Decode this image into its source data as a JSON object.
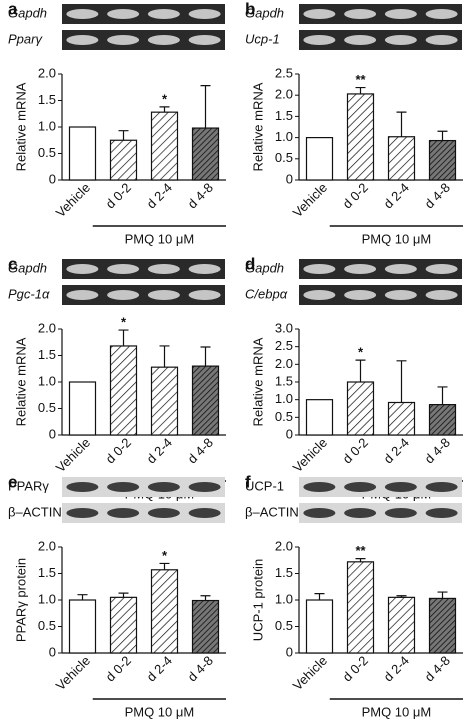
{
  "chart_data": [
    {
      "type": "bar",
      "panel": "a",
      "gel_labels": [
        "Gapdh",
        "Pparγ"
      ],
      "gel_label_italic": true,
      "gel_style": "dark",
      "ylabel": "Relative mRNA",
      "categories": [
        "Vehicle",
        "d 0-2",
        "d 2-4",
        "d 4-8"
      ],
      "values": [
        1.0,
        0.75,
        1.28,
        0.98
      ],
      "errors": [
        0,
        0.18,
        0.1,
        0.8
      ],
      "significance": [
        null,
        null,
        "*",
        null
      ],
      "bar_patterns": [
        "open",
        "hatch",
        "hatch",
        "dense"
      ],
      "group_label": "PMQ 10 μM",
      "ylim": [
        0,
        2.0
      ],
      "yticks": [
        0,
        0.5,
        {
          "value": 1,
          "label": "1.0"
        },
        1.5,
        {
          "value": 2,
          "label": "2.0"
        }
      ]
    },
    {
      "type": "bar",
      "panel": "b",
      "gel_labels": [
        "Gapdh",
        "Ucp-1"
      ],
      "gel_label_italic": true,
      "gel_style": "dark",
      "ylabel": "Relative mRNA",
      "categories": [
        "Vehicle",
        "d 0-2",
        "d 2-4",
        "d 4-8"
      ],
      "values": [
        1.0,
        2.03,
        1.02,
        0.93
      ],
      "errors": [
        0,
        0.15,
        0.58,
        0.22
      ],
      "significance": [
        null,
        "**",
        null,
        null
      ],
      "bar_patterns": [
        "open",
        "hatch",
        "hatch",
        "dense"
      ],
      "group_label": "PMQ 10 μM",
      "ylim": [
        0,
        2.5
      ],
      "yticks": [
        0,
        0.5,
        {
          "value": 1,
          "label": "1.0"
        },
        1.5,
        {
          "value": 2,
          "label": "2.0"
        },
        2.5
      ]
    },
    {
      "type": "bar",
      "panel": "c",
      "gel_labels": [
        "Gapdh",
        "Pgc-1α"
      ],
      "gel_label_italic": true,
      "gel_style": "dark",
      "ylabel": "Relative mRNA",
      "categories": [
        "Vehicle",
        "d 0-2",
        "d 2-4",
        "d 4-8"
      ],
      "values": [
        1.0,
        1.68,
        1.28,
        1.3
      ],
      "errors": [
        0,
        0.3,
        0.4,
        0.36
      ],
      "significance": [
        null,
        "*",
        null,
        null
      ],
      "bar_patterns": [
        "open",
        "hatch",
        "hatch",
        "dense"
      ],
      "group_label": "PMQ 10 μM",
      "ylim": [
        0,
        2.0
      ],
      "yticks": [
        0,
        0.5,
        {
          "value": 1,
          "label": "1.0"
        },
        1.5,
        {
          "value": 2,
          "label": "2.0"
        }
      ]
    },
    {
      "type": "bar",
      "panel": "d",
      "gel_labels": [
        "Gapdh",
        "C/ebpα"
      ],
      "gel_label_italic": true,
      "gel_style": "dark",
      "ylabel": "Relative mRNA",
      "categories": [
        "Vehicle",
        "d 0-2",
        "d 2-4",
        "d 4-8"
      ],
      "values": [
        1.0,
        1.5,
        0.92,
        0.86
      ],
      "errors": [
        0,
        0.62,
        1.18,
        0.5
      ],
      "significance": [
        null,
        "*",
        null,
        null
      ],
      "bar_patterns": [
        "open",
        "hatch",
        "hatch",
        "dense"
      ],
      "group_label": "PMQ 10 μM",
      "ylim": [
        0,
        3.0
      ],
      "yticks": [
        0,
        0.5,
        {
          "value": 1,
          "label": "1.0"
        },
        1.5,
        {
          "value": 2,
          "label": "2.0"
        },
        2.5,
        {
          "value": 3,
          "label": "3.0"
        }
      ]
    },
    {
      "type": "bar",
      "panel": "e",
      "gel_labels": [
        "PPARγ",
        "β–ACTIN"
      ],
      "gel_label_italic": false,
      "gel_style": "light",
      "ylabel": "PPARγ protein",
      "categories": [
        "Vehicle",
        "d 0-2",
        "d 2-4",
        "d 4-8"
      ],
      "values": [
        1.0,
        1.05,
        1.57,
        0.99
      ],
      "errors": [
        0.1,
        0.08,
        0.12,
        0.09
      ],
      "significance": [
        null,
        null,
        "*",
        null
      ],
      "bar_patterns": [
        "open",
        "hatch",
        "hatch",
        "dense"
      ],
      "group_label": "PMQ 10 μM",
      "ylim": [
        0,
        2.0
      ],
      "yticks": [
        0,
        0.5,
        {
          "value": 1,
          "label": "1.0"
        },
        1.5,
        {
          "value": 2,
          "label": "2.0"
        }
      ]
    },
    {
      "type": "bar",
      "panel": "f",
      "gel_labels": [
        "UCP-1",
        "β–ACTIN"
      ],
      "gel_label_italic": false,
      "gel_style": "light",
      "ylabel": "UCP-1 protein",
      "categories": [
        "Vehicle",
        "d 0-2",
        "d 2-4",
        "d 4-8"
      ],
      "values": [
        1.0,
        1.72,
        1.05,
        1.03
      ],
      "errors": [
        0.12,
        0.06,
        0.03,
        0.12
      ],
      "significance": [
        null,
        "**",
        null,
        null
      ],
      "bar_patterns": [
        "open",
        "hatch",
        "hatch",
        "dense"
      ],
      "group_label": "PMQ 10 μM",
      "ylim": [
        0,
        2.0
      ],
      "yticks": [
        0,
        0.5,
        {
          "value": 1,
          "label": "1.0"
        },
        1.5,
        {
          "value": 2,
          "label": "2.0"
        }
      ]
    }
  ]
}
